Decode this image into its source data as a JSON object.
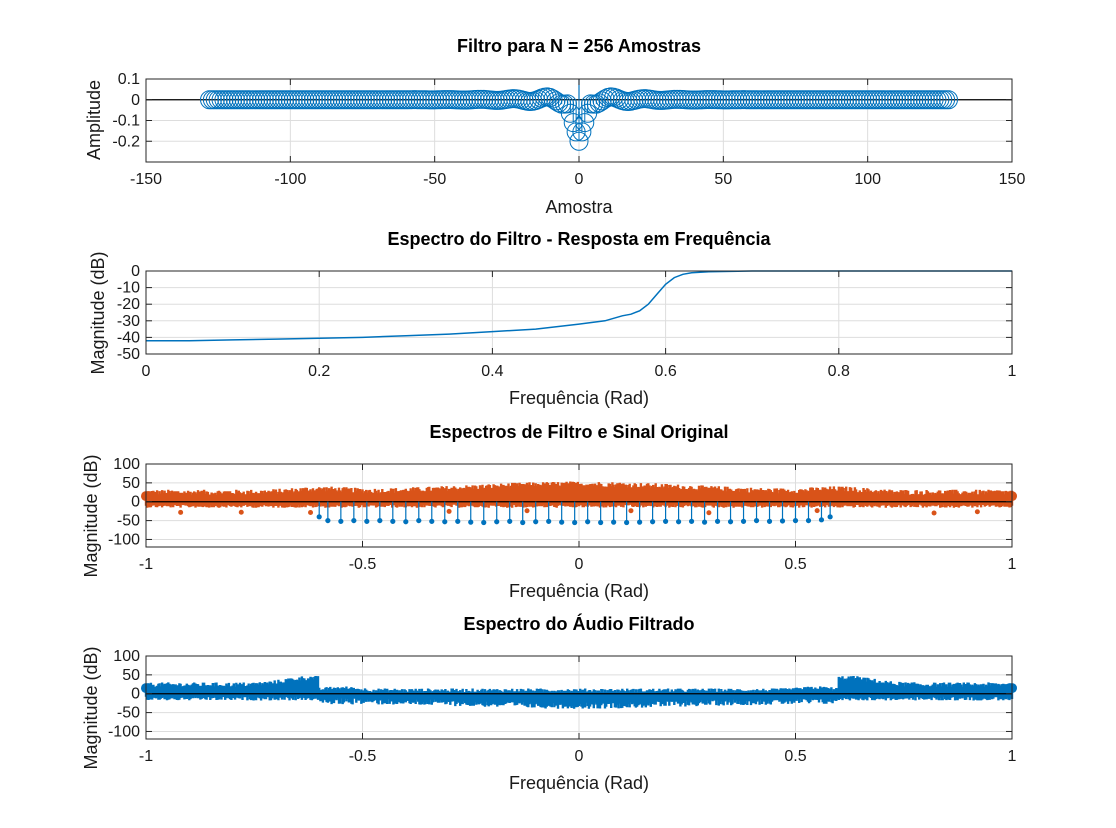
{
  "colors": {
    "blue": "#0072bd",
    "orange": "#d95319",
    "axis": "#262626",
    "grid": "#dddddd",
    "zero_line": "#000000"
  },
  "chart_data": [
    {
      "type": "stem",
      "title": "Filtro para N = 256 Amostras",
      "xlabel": "Amostra",
      "ylabel": "Amplitude",
      "xlim": [
        -150,
        150
      ],
      "ylim": [
        -0.3,
        0.1
      ],
      "xticks": [
        "-150",
        "-100",
        "-50",
        "0",
        "50",
        "100",
        "150"
      ],
      "yticks": [
        "0.1",
        "0",
        "-0.1",
        "-0.2"
      ],
      "marker": "circle",
      "series": [
        {
          "x": [
            -128,
            128
          ],
          "value_range": [
            -0.2,
            0.05
          ],
          "note_values": "sinc-shaped filter taps centered at 0"
        }
      ],
      "points": [
        [
          -128,
          0
        ],
        [
          -120,
          0
        ],
        [
          -100,
          0
        ],
        [
          -80,
          0
        ],
        [
          -60,
          0
        ],
        [
          -40,
          0
        ],
        [
          -25,
          0.004
        ],
        [
          -15,
          0.01
        ],
        [
          -10,
          0.02
        ],
        [
          -8,
          0.03
        ],
        [
          -6,
          0.02
        ],
        [
          -4,
          -0.03
        ],
        [
          -3,
          -0.08
        ],
        [
          -2,
          -0.13
        ],
        [
          -1,
          -0.17
        ],
        [
          0,
          -0.2
        ],
        [
          1,
          -0.17
        ],
        [
          2,
          -0.13
        ],
        [
          3,
          -0.08
        ],
        [
          4,
          -0.03
        ],
        [
          6,
          0.02
        ],
        [
          8,
          0.03
        ],
        [
          10,
          0.02
        ],
        [
          15,
          0.01
        ],
        [
          25,
          0.004
        ],
        [
          40,
          0
        ],
        [
          60,
          0
        ],
        [
          80,
          0
        ],
        [
          100,
          0
        ],
        [
          120,
          0
        ],
        [
          128,
          0
        ]
      ]
    },
    {
      "type": "line",
      "title": "Espectro do Filtro - Resposta em Frequência",
      "xlabel": "Frequência (Rad)",
      "ylabel": "Magnitude (dB)",
      "xlim": [
        0,
        1
      ],
      "ylim": [
        -50,
        0
      ],
      "xticks": [
        "0",
        "0.2",
        "0.4",
        "0.6",
        "0.8",
        "1"
      ],
      "yticks": [
        "0",
        "-10",
        "-20",
        "-30",
        "-40",
        "-50"
      ],
      "series": [
        {
          "x": [
            0,
            0.05,
            0.1,
            0.15,
            0.2,
            0.25,
            0.3,
            0.35,
            0.4,
            0.45,
            0.5,
            0.53,
            0.55,
            0.56,
            0.57,
            0.58,
            0.59,
            0.6,
            0.61,
            0.62,
            0.63,
            0.65,
            0.7,
            0.8,
            0.9,
            1.0
          ],
          "values": [
            -42,
            -42,
            -41.5,
            -41,
            -40.5,
            -40,
            -39,
            -38,
            -36.5,
            -35,
            -32,
            -30,
            -27,
            -26,
            -24,
            -20,
            -14,
            -8,
            -4,
            -2,
            -1,
            -0.5,
            0,
            0,
            0,
            0
          ]
        }
      ]
    },
    {
      "type": "stem",
      "title": "Espectros de Filtro e Sinal Original",
      "xlabel": "Frequência (Rad)",
      "ylabel": "Magnitude (dB)",
      "xlim": [
        -1,
        1
      ],
      "ylim": [
        -120,
        100
      ],
      "xticks": [
        "-1",
        "-0.5",
        "0",
        "0.5",
        "1"
      ],
      "yticks": [
        "100",
        "50",
        "0",
        "-50",
        "-100"
      ],
      "series": [
        {
          "color": "orange",
          "x": [
            -1,
            1
          ],
          "value_range": [
            -20,
            70
          ],
          "note_values": "dense noisy audio spectrum, higher near 0"
        },
        {
          "color": "blue",
          "x": [
            -0.6,
            0.58
          ],
          "value_range": [
            -55,
            -40
          ],
          "note_values": "filter stems across passband"
        }
      ],
      "filter_stems": [
        [
          -0.6,
          -40
        ],
        [
          -0.58,
          -50
        ],
        [
          -0.55,
          -52
        ],
        [
          -0.52,
          -50
        ],
        [
          -0.49,
          -52
        ],
        [
          -0.46,
          -50
        ],
        [
          -0.43,
          -52
        ],
        [
          -0.4,
          -53
        ],
        [
          -0.37,
          -50
        ],
        [
          -0.34,
          -52
        ],
        [
          -0.31,
          -53
        ],
        [
          -0.28,
          -52
        ],
        [
          -0.25,
          -54
        ],
        [
          -0.22,
          -55
        ],
        [
          -0.19,
          -53
        ],
        [
          -0.16,
          -52
        ],
        [
          -0.13,
          -55
        ],
        [
          -0.1,
          -53
        ],
        [
          -0.07,
          -52
        ],
        [
          -0.04,
          -54
        ],
        [
          -0.01,
          -55
        ],
        [
          0.02,
          -53
        ],
        [
          0.05,
          -55
        ],
        [
          0.08,
          -54
        ],
        [
          0.11,
          -55
        ],
        [
          0.14,
          -54
        ],
        [
          0.17,
          -53
        ],
        [
          0.2,
          -52
        ],
        [
          0.23,
          -53
        ],
        [
          0.26,
          -52
        ],
        [
          0.29,
          -54
        ],
        [
          0.32,
          -52
        ],
        [
          0.35,
          -53
        ],
        [
          0.38,
          -52
        ],
        [
          0.41,
          -50
        ],
        [
          0.44,
          -52
        ],
        [
          0.47,
          -51
        ],
        [
          0.5,
          -50
        ],
        [
          0.53,
          -50
        ],
        [
          0.56,
          -48
        ],
        [
          0.58,
          -40
        ]
      ]
    },
    {
      "type": "stem",
      "title": "Espectro do Áudio Filtrado",
      "xlabel": "Frequência (Rad)",
      "ylabel": "Magnitude (dB)",
      "xlim": [
        -1,
        1
      ],
      "ylim": [
        -120,
        100
      ],
      "xticks": [
        "-1",
        "-0.5",
        "0",
        "0.5",
        "1"
      ],
      "yticks": [
        "100",
        "50",
        "0",
        "-50",
        "-100"
      ],
      "series": [
        {
          "color": "blue",
          "x": [
            -1,
            1
          ],
          "value_range": [
            -50,
            55
          ],
          "note_values": "filtered spectrum: high magnitude outside |f|<0.6, attenuated inside"
        }
      ]
    }
  ]
}
